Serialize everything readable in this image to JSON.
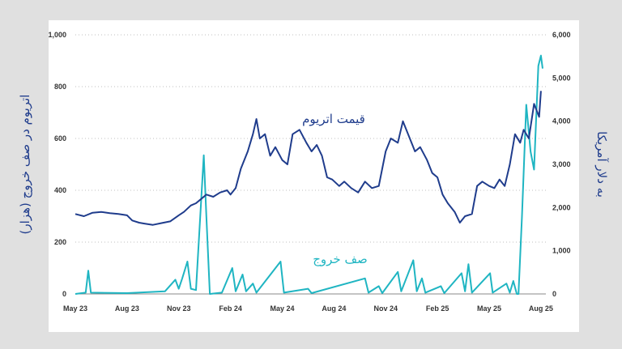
{
  "chart_data": {
    "type": "line",
    "x_unit": "months since May 2023",
    "x_ticks": [
      {
        "m": 0,
        "label": "May 23"
      },
      {
        "m": 3,
        "label": "Aug 23"
      },
      {
        "m": 6,
        "label": "Nov 23"
      },
      {
        "m": 9,
        "label": "Feb 24"
      },
      {
        "m": 12,
        "label": "May 24"
      },
      {
        "m": 15,
        "label": "Aug 24"
      },
      {
        "m": 18,
        "label": "Nov 24"
      },
      {
        "m": 21,
        "label": "Feb 25"
      },
      {
        "m": 24,
        "label": "May 25"
      },
      {
        "m": 27,
        "label": "Aug 25"
      }
    ],
    "xlim": [
      0,
      27.1
    ],
    "left_axis": {
      "label": "اتریوم در صف خروج (هزار)",
      "ylim": [
        0,
        1000
      ],
      "ticks": [
        "0",
        "200",
        "400",
        "600",
        "800",
        "1,000"
      ],
      "tick_values": [
        0,
        200,
        400,
        600,
        800,
        1000
      ]
    },
    "right_axis": {
      "label": "به دلار آمریکا",
      "ylim": [
        0,
        6000
      ],
      "ticks": [
        "0",
        "1,000",
        "2,000",
        "3,000",
        "4,000",
        "5,000",
        "6,000"
      ],
      "tick_values": [
        0,
        1000,
        2000,
        3000,
        4000,
        5000,
        6000
      ]
    },
    "grid": true,
    "series": [
      {
        "name": "قیمت اتریوم",
        "axis": "right",
        "color": "#1f3c8c",
        "points": [
          [
            0,
            1850
          ],
          [
            0.5,
            1800
          ],
          [
            1,
            1880
          ],
          [
            1.5,
            1900
          ],
          [
            2,
            1870
          ],
          [
            2.5,
            1850
          ],
          [
            3,
            1820
          ],
          [
            3.3,
            1700
          ],
          [
            3.7,
            1650
          ],
          [
            4,
            1630
          ],
          [
            4.5,
            1600
          ],
          [
            5,
            1640
          ],
          [
            5.5,
            1680
          ],
          [
            6,
            1820
          ],
          [
            6.3,
            1900
          ],
          [
            6.7,
            2050
          ],
          [
            7,
            2100
          ],
          [
            7.3,
            2200
          ],
          [
            7.6,
            2300
          ],
          [
            8,
            2250
          ],
          [
            8.4,
            2350
          ],
          [
            8.8,
            2400
          ],
          [
            9,
            2300
          ],
          [
            9.3,
            2450
          ],
          [
            9.6,
            2900
          ],
          [
            10,
            3300
          ],
          [
            10.3,
            3700
          ],
          [
            10.5,
            4050
          ],
          [
            10.7,
            3600
          ],
          [
            11,
            3700
          ],
          [
            11.3,
            3200
          ],
          [
            11.6,
            3400
          ],
          [
            12,
            3100
          ],
          [
            12.3,
            3000
          ],
          [
            12.6,
            3700
          ],
          [
            13,
            3800
          ],
          [
            13.4,
            3500
          ],
          [
            13.7,
            3300
          ],
          [
            14,
            3450
          ],
          [
            14.3,
            3200
          ],
          [
            14.6,
            2700
          ],
          [
            14.9,
            2650
          ],
          [
            15.3,
            2500
          ],
          [
            15.6,
            2600
          ],
          [
            16,
            2450
          ],
          [
            16.4,
            2350
          ],
          [
            16.8,
            2600
          ],
          [
            17.2,
            2450
          ],
          [
            17.6,
            2500
          ],
          [
            18,
            3300
          ],
          [
            18.3,
            3600
          ],
          [
            18.7,
            3500
          ],
          [
            19,
            4000
          ],
          [
            19.3,
            3700
          ],
          [
            19.7,
            3300
          ],
          [
            20,
            3400
          ],
          [
            20.4,
            3100
          ],
          [
            20.7,
            2800
          ],
          [
            21,
            2700
          ],
          [
            21.3,
            2300
          ],
          [
            21.6,
            2100
          ],
          [
            22,
            1900
          ],
          [
            22.3,
            1650
          ],
          [
            22.6,
            1800
          ],
          [
            23,
            1850
          ],
          [
            23.3,
            2500
          ],
          [
            23.6,
            2600
          ],
          [
            24,
            2500
          ],
          [
            24.3,
            2450
          ],
          [
            24.6,
            2650
          ],
          [
            24.9,
            2500
          ],
          [
            25.2,
            3000
          ],
          [
            25.5,
            3700
          ],
          [
            25.8,
            3500
          ],
          [
            26,
            3800
          ],
          [
            26.3,
            3600
          ],
          [
            26.6,
            4400
          ],
          [
            26.9,
            4100
          ],
          [
            27,
            4700
          ]
        ]
      },
      {
        "name": "صف خروج",
        "axis": "left",
        "color": "#1fb5c2",
        "points": [
          [
            0,
            0
          ],
          [
            0.6,
            5
          ],
          [
            0.75,
            90
          ],
          [
            0.9,
            5
          ],
          [
            3,
            3
          ],
          [
            5.2,
            10
          ],
          [
            5.8,
            55
          ],
          [
            6,
            20
          ],
          [
            6.2,
            60
          ],
          [
            6.5,
            125
          ],
          [
            6.7,
            20
          ],
          [
            7,
            15
          ],
          [
            7.45,
            535
          ],
          [
            7.6,
            300
          ],
          [
            7.8,
            0
          ],
          [
            8.5,
            5
          ],
          [
            9.1,
            100
          ],
          [
            9.3,
            10
          ],
          [
            9.7,
            75
          ],
          [
            9.9,
            10
          ],
          [
            10.3,
            40
          ],
          [
            10.5,
            5
          ],
          [
            11.9,
            125
          ],
          [
            12.1,
            5
          ],
          [
            13.5,
            20
          ],
          [
            13.7,
            3
          ],
          [
            16.8,
            60
          ],
          [
            17,
            5
          ],
          [
            17.6,
            30
          ],
          [
            17.8,
            3
          ],
          [
            18.7,
            85
          ],
          [
            18.9,
            10
          ],
          [
            19.6,
            130
          ],
          [
            19.8,
            10
          ],
          [
            20.1,
            60
          ],
          [
            20.3,
            5
          ],
          [
            21.2,
            30
          ],
          [
            21.4,
            3
          ],
          [
            22.4,
            80
          ],
          [
            22.6,
            10
          ],
          [
            22.8,
            115
          ],
          [
            23,
            5
          ],
          [
            24.05,
            80
          ],
          [
            24.2,
            5
          ],
          [
            25,
            40
          ],
          [
            25.2,
            5
          ],
          [
            25.4,
            50
          ],
          [
            25.6,
            0
          ],
          [
            25.7,
            0
          ],
          [
            25.9,
            300
          ],
          [
            26.15,
            730
          ],
          [
            26.4,
            550
          ],
          [
            26.6,
            480
          ],
          [
            26.85,
            880
          ],
          [
            27,
            920
          ],
          [
            27.1,
            870
          ]
        ]
      }
    ],
    "annotations": [
      {
        "text": "قیمت اتریوم",
        "series": "قیمت اتریوم"
      },
      {
        "text": "صف خروج",
        "series": "صف خروج"
      }
    ]
  }
}
